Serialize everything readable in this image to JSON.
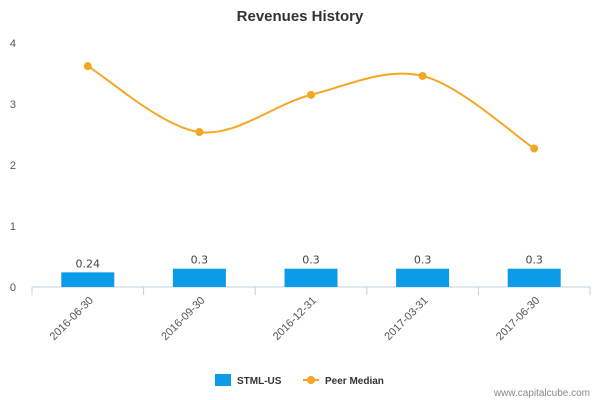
{
  "chart_data": {
    "type": "bar",
    "title": "Revenues History",
    "categories": [
      "2016-06-30",
      "2016-09-30",
      "2016-12-31",
      "2017-03-31",
      "2017-06-30"
    ],
    "ylim": [
      0,
      4
    ],
    "yticks": [
      "0",
      "1",
      "2",
      "3",
      "4"
    ],
    "grid": false,
    "legend_position": "bottom-center",
    "series": [
      {
        "name": "STML-US",
        "type": "bar",
        "color": "#0b9be8",
        "values": [
          0.24,
          0.3,
          0.3,
          0.3,
          0.3
        ],
        "labels": [
          "0.24",
          "0.3",
          "0.3",
          "0.3",
          "0.3"
        ]
      },
      {
        "name": "Peer Median",
        "type": "line",
        "color": "#f5a623",
        "values": [
          3.62,
          2.54,
          3.15,
          3.46,
          2.27
        ]
      }
    ]
  },
  "credit": "www.capitalcube.com"
}
